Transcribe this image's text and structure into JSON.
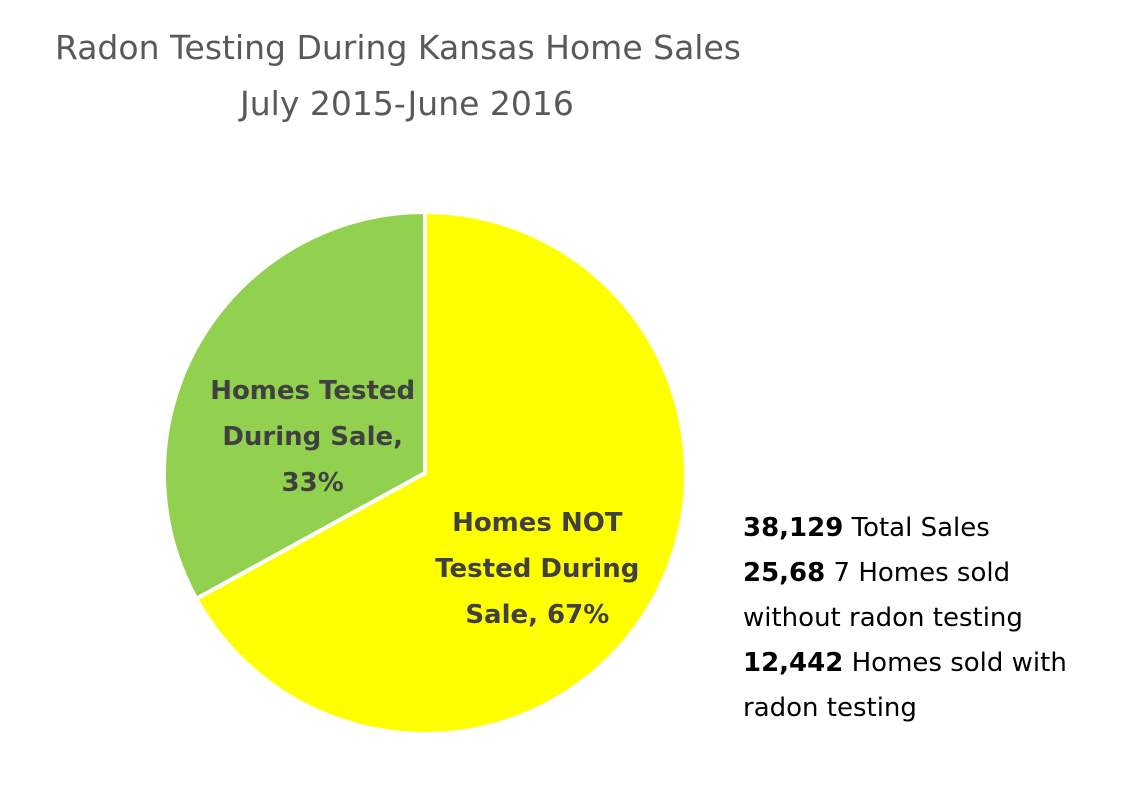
{
  "chart_data": {
    "type": "pie",
    "title": "Radon Testing During Kansas Home Sales",
    "subtitle": "July 2015-June 2016",
    "values": [
      67,
      33
    ],
    "value_labels": [
      "Homes NOT Tested During Sale, 67%",
      "Homes Tested During Sale, 33%"
    ],
    "colors": [
      "#ffff00",
      "#92d050"
    ],
    "notes": [
      {
        "bold": "38,129",
        "text": "Total Sales"
      },
      {
        "bold": "25,68",
        "text": "7 Homes sold without radon testing"
      },
      {
        "bold": "12,442",
        "text": "Homes sold with radon testing"
      }
    ]
  }
}
